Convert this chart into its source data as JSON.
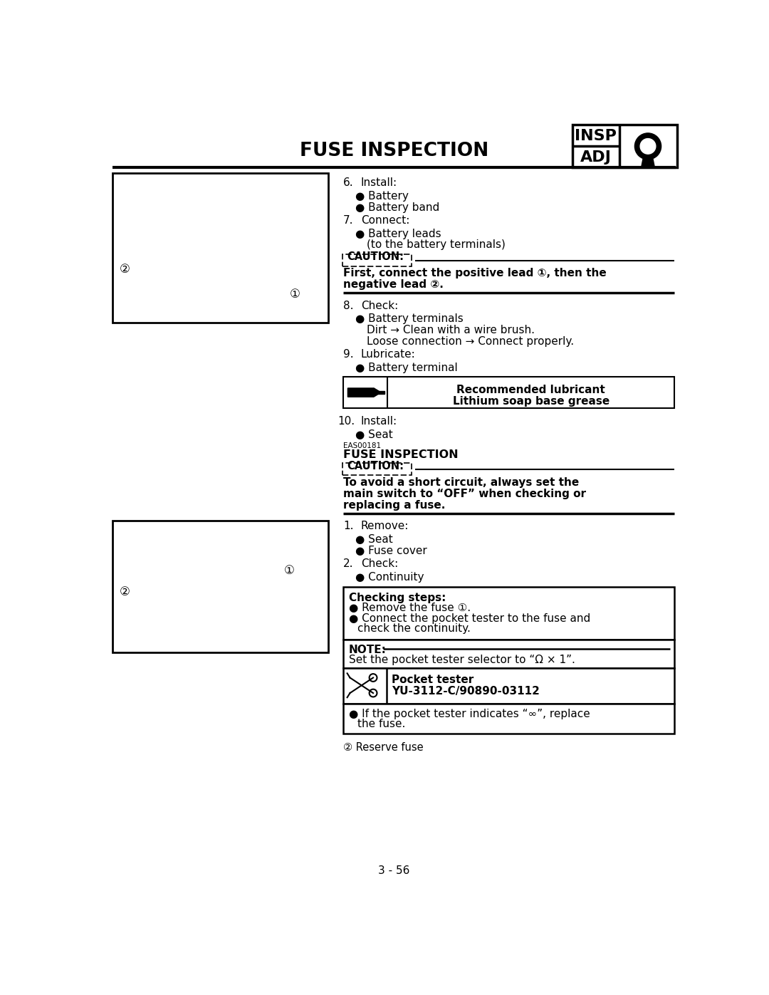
{
  "title": "FUSE INSPECTION",
  "page_number": "3 - 56",
  "bg_color": "#ffffff",
  "header_title": "FUSE INSPECTION",
  "insp_text": "INSP",
  "adj_text": "ADJ",
  "caution1_label": "CAUTION:",
  "caution1_line1": "First, connect the positive lead ①, then the",
  "caution1_line2": "negative lead ②.",
  "caution2_label": "CAUTION:",
  "caution2_line1": "To avoid a short circuit, always set the",
  "caution2_line2": "main switch to “OFF” when checking or",
  "caution2_line3": "replacing a fuse.",
  "lub_label": "Recommended lubricant",
  "lub_value": "Lithium soap base grease",
  "fuse_code": "EAS00181",
  "fuse_title2": "FUSE INSPECTION",
  "checking_title": "Checking steps:",
  "checking_line1": "● Remove the fuse ①.",
  "checking_line2": "● Connect the pocket tester to the fuse and",
  "checking_line3": "  check the continuity.",
  "note_label": "NOTE:",
  "note_line": "Set the pocket tester selector to “Ω × 1”.",
  "tester_label": "Pocket tester",
  "tester_value": "YU-3112-C/90890-03112",
  "final_line1": "● If the pocket tester indicates “∞”, replace",
  "final_line2": "  the fuse.",
  "reserve_fuse": "② Reserve fuse",
  "page_num": "3 - 56"
}
